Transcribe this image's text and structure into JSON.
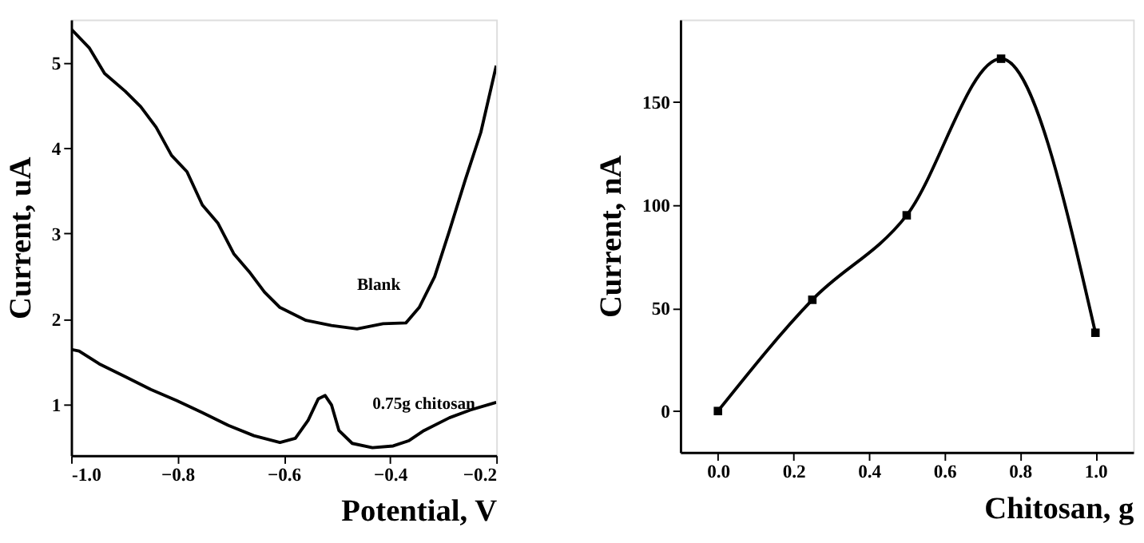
{
  "chart_data": [
    {
      "type": "line",
      "xlabel": "Potential, V",
      "ylabel": "Current, uA",
      "xlim": [
        -1.0,
        -0.2
      ],
      "ylim": [
        0.4,
        5.5
      ],
      "xticks": [
        {
          "value": -1.0,
          "label": "-1.0"
        },
        -0.8,
        -0.6,
        -0.4,
        -0.2
      ],
      "yticks": [
        1,
        2,
        3,
        4,
        5
      ],
      "grid": false,
      "marker": "none",
      "line_style": "solid",
      "series": [
        {
          "name": "Blank",
          "color": "#000000",
          "x": [
            -1.0,
            -0.966,
            -0.937,
            -0.898,
            -0.869,
            -0.84,
            -0.811,
            -0.782,
            -0.753,
            -0.724,
            -0.694,
            -0.665,
            -0.636,
            -0.607,
            -0.558,
            -0.51,
            -0.462,
            -0.413,
            -0.37,
            -0.345,
            -0.316,
            -0.288,
            -0.258,
            -0.229,
            -0.2
          ],
          "values": [
            5.39,
            5.17,
            4.87,
            4.66,
            4.48,
            4.24,
            3.91,
            3.72,
            3.33,
            3.12,
            2.76,
            2.55,
            2.31,
            2.13,
            1.98,
            1.92,
            1.88,
            1.94,
            1.95,
            2.13,
            2.49,
            3.03,
            3.63,
            4.18,
            4.96
          ]
        },
        {
          "name": "0.75g chitosan",
          "color": "#000000",
          "x": [
            -1.0,
            -0.985,
            -0.947,
            -0.898,
            -0.85,
            -0.801,
            -0.753,
            -0.704,
            -0.656,
            -0.607,
            -0.578,
            -0.554,
            -0.535,
            -0.522,
            -0.51,
            -0.496,
            -0.471,
            -0.433,
            -0.394,
            -0.365,
            -0.336,
            -0.288,
            -0.249,
            -0.2
          ],
          "values": [
            1.64,
            1.62,
            1.47,
            1.32,
            1.17,
            1.04,
            0.9,
            0.75,
            0.63,
            0.55,
            0.6,
            0.81,
            1.06,
            1.1,
            0.99,
            0.69,
            0.54,
            0.49,
            0.51,
            0.57,
            0.69,
            0.84,
            0.93,
            1.02
          ]
        }
      ]
    },
    {
      "type": "line",
      "xlabel": "Chitosan, g",
      "ylabel": "Current, nA",
      "xlim": [
        -0.1,
        1.1
      ],
      "ylim": [
        -20,
        190
      ],
      "xticks": [
        {
          "value": 0,
          "label": "0.0"
        },
        0.2,
        0.4,
        0.6,
        0.8,
        {
          "value": 1,
          "label": "1.0"
        }
      ],
      "yticks": [
        0,
        50,
        100,
        150
      ],
      "grid": false,
      "marker": "square",
      "line_style": "solid",
      "series": [
        {
          "color": "#000000",
          "x": [
            0,
            0.25,
            0.5,
            0.75,
            1.0
          ],
          "values": [
            0,
            54,
            95,
            171,
            38
          ]
        }
      ]
    }
  ]
}
